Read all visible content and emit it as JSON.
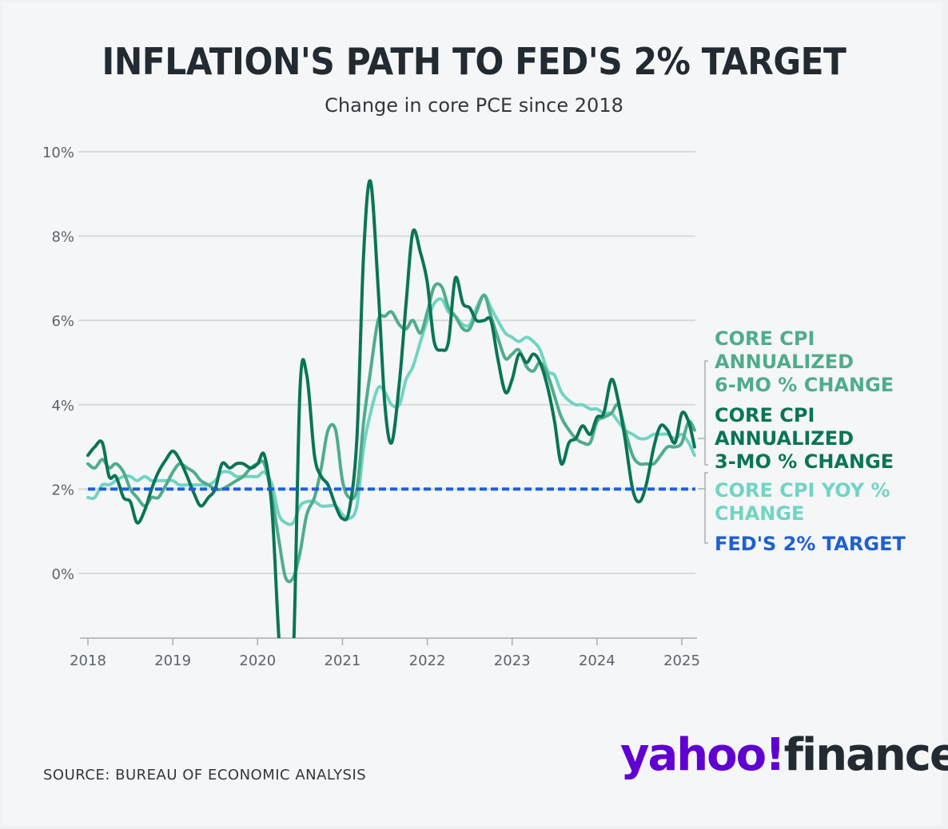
{
  "title": "INFLATION'S PATH TO FED'S 2% TARGET",
  "subtitle": "Change in core PCE since 2018",
  "source": "SOURCE: BUREAU OF ECONOMIC ANALYSIS",
  "logo": {
    "part1": "yahoo!",
    "part2": "finance"
  },
  "colors": {
    "six_month": "#4fac8c",
    "three_month": "#0a7457",
    "yoy": "#72d4c2",
    "target": "#1f5fd1",
    "grid": "#d7d9dc",
    "axis": "#a9adb2"
  },
  "chart_data": {
    "type": "line",
    "title": "",
    "xlabel": "",
    "ylabel": "",
    "xlim": [
      2018,
      2025.15
    ],
    "ylim": [
      -1.6,
      10
    ],
    "yticks": [
      0,
      2,
      4,
      6,
      8,
      10
    ],
    "ytick_labels": [
      "0%",
      "2%",
      "4%",
      "6%",
      "8%",
      "10%"
    ],
    "xticks": [
      2018,
      2019,
      2020,
      2021,
      2022,
      2023,
      2024,
      2025
    ],
    "xtick_labels": [
      "2018",
      "2019",
      "2020",
      "2021",
      "2022",
      "2023",
      "2024",
      "2025"
    ],
    "grid": true,
    "legend_position": "right",
    "series": [
      {
        "name": "CORE CPI YOY % CHANGE",
        "color": "#72d4c2",
        "points": [
          [
            2018.0,
            1.8
          ],
          [
            2018.08,
            1.8
          ],
          [
            2018.17,
            2.1
          ],
          [
            2018.25,
            2.1
          ],
          [
            2018.33,
            2.2
          ],
          [
            2018.42,
            2.3
          ],
          [
            2018.5,
            2.3
          ],
          [
            2018.58,
            2.2
          ],
          [
            2018.67,
            2.3
          ],
          [
            2018.75,
            2.2
          ],
          [
            2018.83,
            2.2
          ],
          [
            2018.92,
            2.2
          ],
          [
            2019.0,
            2.2
          ],
          [
            2019.08,
            2.1
          ],
          [
            2019.17,
            2.1
          ],
          [
            2019.25,
            2.1
          ],
          [
            2019.33,
            2.1
          ],
          [
            2019.42,
            2.1
          ],
          [
            2019.5,
            2.2
          ],
          [
            2019.58,
            2.4
          ],
          [
            2019.67,
            2.4
          ],
          [
            2019.75,
            2.3
          ],
          [
            2019.83,
            2.3
          ],
          [
            2019.92,
            2.3
          ],
          [
            2020.0,
            2.3
          ],
          [
            2020.08,
            2.4
          ],
          [
            2020.17,
            2.1
          ],
          [
            2020.25,
            1.4
          ],
          [
            2020.33,
            1.2
          ],
          [
            2020.42,
            1.2
          ],
          [
            2020.5,
            1.6
          ],
          [
            2020.58,
            1.7
          ],
          [
            2020.67,
            1.7
          ],
          [
            2020.75,
            1.6
          ],
          [
            2020.83,
            1.6
          ],
          [
            2020.92,
            1.6
          ],
          [
            2021.0,
            1.4
          ],
          [
            2021.08,
            1.3
          ],
          [
            2021.17,
            1.6
          ],
          [
            2021.25,
            3.0
          ],
          [
            2021.33,
            3.8
          ],
          [
            2021.42,
            4.4
          ],
          [
            2021.5,
            4.3
          ],
          [
            2021.58,
            4.0
          ],
          [
            2021.67,
            4.0
          ],
          [
            2021.75,
            4.6
          ],
          [
            2021.83,
            4.9
          ],
          [
            2021.92,
            5.5
          ],
          [
            2022.0,
            6.0
          ],
          [
            2022.08,
            6.4
          ],
          [
            2022.17,
            6.5
          ],
          [
            2022.25,
            6.2
          ],
          [
            2022.33,
            6.1
          ],
          [
            2022.42,
            5.9
          ],
          [
            2022.5,
            5.9
          ],
          [
            2022.58,
            6.3
          ],
          [
            2022.67,
            6.6
          ],
          [
            2022.75,
            6.3
          ],
          [
            2022.83,
            6.0
          ],
          [
            2022.92,
            5.7
          ],
          [
            2023.0,
            5.6
          ],
          [
            2023.08,
            5.5
          ],
          [
            2023.17,
            5.6
          ],
          [
            2023.25,
            5.5
          ],
          [
            2023.33,
            5.3
          ],
          [
            2023.42,
            4.8
          ],
          [
            2023.5,
            4.7
          ],
          [
            2023.58,
            4.3
          ],
          [
            2023.67,
            4.1
          ],
          [
            2023.75,
            4.0
          ],
          [
            2023.83,
            4.0
          ],
          [
            2023.92,
            3.9
          ],
          [
            2024.0,
            3.9
          ],
          [
            2024.08,
            3.8
          ],
          [
            2024.17,
            3.8
          ],
          [
            2024.25,
            3.6
          ],
          [
            2024.33,
            3.4
          ],
          [
            2024.42,
            3.3
          ],
          [
            2024.5,
            3.2
          ],
          [
            2024.58,
            3.2
          ],
          [
            2024.67,
            3.3
          ],
          [
            2024.75,
            3.3
          ],
          [
            2024.83,
            3.3
          ],
          [
            2024.92,
            3.2
          ],
          [
            2025.0,
            3.3
          ],
          [
            2025.08,
            3.1
          ],
          [
            2025.15,
            2.8
          ]
        ]
      },
      {
        "name": "CORE CPI ANNUALIZED 6-MO % CHANGE",
        "color": "#4fac8c",
        "points": [
          [
            2018.0,
            2.6
          ],
          [
            2018.08,
            2.5
          ],
          [
            2018.17,
            2.7
          ],
          [
            2018.25,
            2.5
          ],
          [
            2018.33,
            2.6
          ],
          [
            2018.42,
            2.4
          ],
          [
            2018.5,
            2.0
          ],
          [
            2018.58,
            1.8
          ],
          [
            2018.67,
            1.6
          ],
          [
            2018.75,
            1.8
          ],
          [
            2018.83,
            1.8
          ],
          [
            2018.92,
            2.1
          ],
          [
            2019.0,
            2.4
          ],
          [
            2019.08,
            2.6
          ],
          [
            2019.17,
            2.5
          ],
          [
            2019.25,
            2.4
          ],
          [
            2019.33,
            2.2
          ],
          [
            2019.42,
            2.1
          ],
          [
            2019.5,
            2.0
          ],
          [
            2019.58,
            2.0
          ],
          [
            2019.67,
            2.1
          ],
          [
            2019.75,
            2.2
          ],
          [
            2019.83,
            2.3
          ],
          [
            2019.92,
            2.5
          ],
          [
            2020.0,
            2.6
          ],
          [
            2020.08,
            2.6
          ],
          [
            2020.17,
            1.8
          ],
          [
            2020.25,
            0.8
          ],
          [
            2020.33,
            -0.1
          ],
          [
            2020.42,
            -0.1
          ],
          [
            2020.5,
            0.5
          ],
          [
            2020.58,
            1.4
          ],
          [
            2020.67,
            1.8
          ],
          [
            2020.75,
            2.5
          ],
          [
            2020.83,
            3.4
          ],
          [
            2020.92,
            3.4
          ],
          [
            2021.0,
            2.2
          ],
          [
            2021.08,
            1.8
          ],
          [
            2021.17,
            2.0
          ],
          [
            2021.25,
            3.6
          ],
          [
            2021.33,
            4.8
          ],
          [
            2021.42,
            6.0
          ],
          [
            2021.5,
            6.1
          ],
          [
            2021.58,
            6.2
          ],
          [
            2021.67,
            5.9
          ],
          [
            2021.75,
            5.8
          ],
          [
            2021.83,
            6.0
          ],
          [
            2021.92,
            5.7
          ],
          [
            2022.0,
            6.2
          ],
          [
            2022.08,
            6.8
          ],
          [
            2022.17,
            6.8
          ],
          [
            2022.25,
            6.3
          ],
          [
            2022.33,
            6.1
          ],
          [
            2022.42,
            5.8
          ],
          [
            2022.5,
            5.8
          ],
          [
            2022.58,
            6.2
          ],
          [
            2022.67,
            6.6
          ],
          [
            2022.75,
            6.1
          ],
          [
            2022.83,
            5.6
          ],
          [
            2022.92,
            5.1
          ],
          [
            2023.0,
            5.2
          ],
          [
            2023.08,
            5.3
          ],
          [
            2023.17,
            4.9
          ],
          [
            2023.25,
            4.8
          ],
          [
            2023.33,
            5.0
          ],
          [
            2023.42,
            4.7
          ],
          [
            2023.5,
            4.2
          ],
          [
            2023.58,
            3.7
          ],
          [
            2023.67,
            3.4
          ],
          [
            2023.75,
            3.2
          ],
          [
            2023.83,
            3.1
          ],
          [
            2023.92,
            3.1
          ],
          [
            2024.0,
            3.6
          ],
          [
            2024.08,
            3.7
          ],
          [
            2024.17,
            3.8
          ],
          [
            2024.25,
            4.0
          ],
          [
            2024.33,
            3.4
          ],
          [
            2024.42,
            2.8
          ],
          [
            2024.5,
            2.6
          ],
          [
            2024.58,
            2.6
          ],
          [
            2024.67,
            2.6
          ],
          [
            2024.75,
            2.8
          ],
          [
            2024.83,
            3.0
          ],
          [
            2024.92,
            3.0
          ],
          [
            2025.0,
            3.1
          ],
          [
            2025.08,
            3.6
          ],
          [
            2025.15,
            3.4
          ]
        ]
      },
      {
        "name": "CORE CPI ANNUALIZED 3-MO % CHANGE",
        "color": "#0a7457",
        "points": [
          [
            2018.0,
            2.8
          ],
          [
            2018.08,
            3.0
          ],
          [
            2018.17,
            3.1
          ],
          [
            2018.25,
            2.3
          ],
          [
            2018.33,
            2.3
          ],
          [
            2018.42,
            1.8
          ],
          [
            2018.5,
            1.7
          ],
          [
            2018.58,
            1.2
          ],
          [
            2018.67,
            1.5
          ],
          [
            2018.75,
            2.0
          ],
          [
            2018.83,
            2.4
          ],
          [
            2018.92,
            2.7
          ],
          [
            2019.0,
            2.9
          ],
          [
            2019.08,
            2.7
          ],
          [
            2019.17,
            2.3
          ],
          [
            2019.25,
            1.9
          ],
          [
            2019.33,
            1.6
          ],
          [
            2019.42,
            1.8
          ],
          [
            2019.5,
            2.0
          ],
          [
            2019.58,
            2.6
          ],
          [
            2019.67,
            2.5
          ],
          [
            2019.75,
            2.6
          ],
          [
            2019.83,
            2.6
          ],
          [
            2019.92,
            2.5
          ],
          [
            2020.0,
            2.6
          ],
          [
            2020.08,
            2.8
          ],
          [
            2020.17,
            1.5
          ],
          [
            2020.25,
            -1.5
          ],
          [
            2020.33,
            -3.5
          ],
          [
            2020.42,
            -2.0
          ],
          [
            2020.5,
            4.4
          ],
          [
            2020.58,
            4.7
          ],
          [
            2020.67,
            2.8
          ],
          [
            2020.75,
            2.3
          ],
          [
            2020.83,
            2.1
          ],
          [
            2020.92,
            1.6
          ],
          [
            2021.0,
            1.3
          ],
          [
            2021.08,
            1.5
          ],
          [
            2021.17,
            3.2
          ],
          [
            2021.25,
            7.6
          ],
          [
            2021.33,
            9.3
          ],
          [
            2021.42,
            6.8
          ],
          [
            2021.5,
            4.0
          ],
          [
            2021.58,
            3.1
          ],
          [
            2021.67,
            4.5
          ],
          [
            2021.75,
            6.4
          ],
          [
            2021.83,
            8.1
          ],
          [
            2021.92,
            7.6
          ],
          [
            2022.0,
            6.9
          ],
          [
            2022.08,
            5.5
          ],
          [
            2022.17,
            5.3
          ],
          [
            2022.25,
            5.5
          ],
          [
            2022.33,
            7.0
          ],
          [
            2022.42,
            6.4
          ],
          [
            2022.5,
            6.3
          ],
          [
            2022.58,
            6.0
          ],
          [
            2022.67,
            6.0
          ],
          [
            2022.75,
            6.0
          ],
          [
            2022.83,
            5.1
          ],
          [
            2022.92,
            4.3
          ],
          [
            2023.0,
            4.6
          ],
          [
            2023.08,
            5.2
          ],
          [
            2023.17,
            5.0
          ],
          [
            2023.25,
            5.2
          ],
          [
            2023.33,
            5.0
          ],
          [
            2023.42,
            4.4
          ],
          [
            2023.5,
            3.6
          ],
          [
            2023.58,
            2.6
          ],
          [
            2023.67,
            3.1
          ],
          [
            2023.75,
            3.2
          ],
          [
            2023.83,
            3.5
          ],
          [
            2023.92,
            3.3
          ],
          [
            2024.0,
            3.7
          ],
          [
            2024.08,
            3.8
          ],
          [
            2024.17,
            4.6
          ],
          [
            2024.25,
            4.1
          ],
          [
            2024.33,
            3.2
          ],
          [
            2024.42,
            2.0
          ],
          [
            2024.5,
            1.7
          ],
          [
            2024.58,
            2.1
          ],
          [
            2024.67,
            3.0
          ],
          [
            2024.75,
            3.5
          ],
          [
            2024.83,
            3.4
          ],
          [
            2024.92,
            3.1
          ],
          [
            2025.0,
            3.8
          ],
          [
            2025.08,
            3.6
          ],
          [
            2025.15,
            3.0
          ]
        ]
      }
    ],
    "reference_line": {
      "name": "FED'S 2% TARGET",
      "value": 2,
      "color": "#1f5fd1",
      "style": "dashed"
    },
    "legend": [
      {
        "lines": [
          "CORE CPI",
          "ANNUALIZED",
          "6-MO % CHANGE"
        ],
        "color": "#4fac8c"
      },
      {
        "lines": [
          "CORE CPI",
          "ANNUALIZED",
          "3-MO % CHANGE"
        ],
        "color": "#0a7457"
      },
      {
        "lines": [
          "CORE CPI YOY %",
          "CHANGE"
        ],
        "color": "#72d4c2"
      },
      {
        "lines": [
          "FED'S 2% TARGET"
        ],
        "color": "#1f5fd1"
      }
    ]
  }
}
